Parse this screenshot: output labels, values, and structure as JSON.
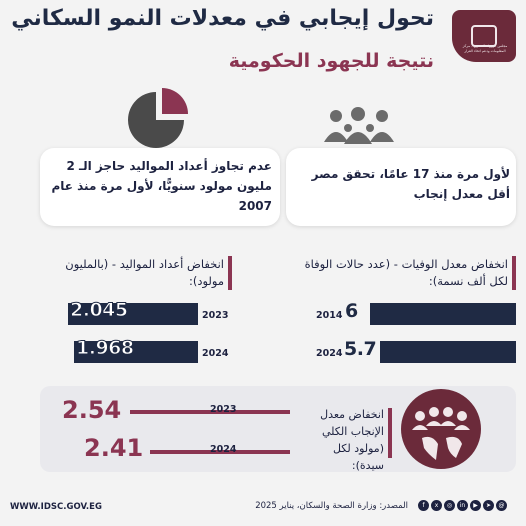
{
  "header": {
    "title_line1": "تحول إيجابي في معدلات النمو السكاني",
    "title_line2": "نتيجة للجهود الحكومية",
    "logo_text": "مجلس الوزراء المصري - مركز المعلومات ودعم اتخاذ القرار"
  },
  "cards": {
    "right_text": "لأول مرة منذ 17 عامًا، تحقق مصر أقل معدل إنجاب",
    "left_text": "عدم تجاوز أعداد المواليد حاجز الـ 2 مليون مولود سنويًّا، لأول مرة منذ عام 2007"
  },
  "deaths": {
    "label": "انخفاض معدل الوفيات - (عدد حالات الوفاة لكل ألف نسمة):",
    "rows": [
      {
        "year": "2014",
        "value": "6"
      },
      {
        "year": "2024",
        "value": "5.7"
      }
    ]
  },
  "births": {
    "label": "انخفاض أعداد المواليد - (بالمليون مولود):",
    "rows": [
      {
        "year": "2023",
        "value": "2.045"
      },
      {
        "year": "2024",
        "value": "1.968"
      }
    ]
  },
  "fertility": {
    "label": "انخفاض معدل الإنجاب الكلي (مولود لكل سيدة):",
    "rows": [
      {
        "year": "2023",
        "value": "2.54"
      },
      {
        "year": "2024",
        "value": "2.41"
      }
    ]
  },
  "footer": {
    "url": "WWW.IDSC.GOV.EG",
    "source": "المصدر: وزارة الصحة والسكان، يناير 2025"
  },
  "colors": {
    "navy": "#1f2a44",
    "maroon": "#8b3552"
  },
  "icons": [
    "family-icon",
    "people-group-icon",
    "pie-chart-icon",
    "people-circle-icon"
  ]
}
